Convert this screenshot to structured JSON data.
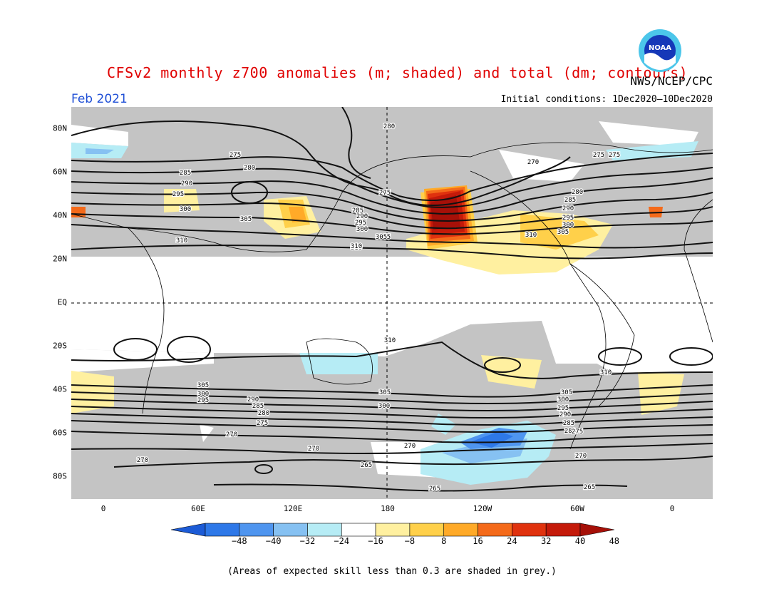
{
  "header": {
    "title": "CFSv2 monthly z700 anomalies (m; shaded) and total (dm; contours)",
    "agency": "NWS/NCEP/CPC",
    "logo_text": "NOAA",
    "month": "Feb 2021",
    "initial_conditions": "Initial conditions: 1Dec2020—10Dec2020"
  },
  "map": {
    "x_ticks": [
      "0",
      "60E",
      "120E",
      "180",
      "120W",
      "60W",
      "0"
    ],
    "y_ticks": [
      "80N",
      "60N",
      "40N",
      "20N",
      "EQ",
      "20S",
      "40S",
      "60S",
      "80S"
    ],
    "grey_meaning": "skill < 0.3",
    "contour_labels": [
      {
        "text": "275"
      },
      {
        "text": "280"
      },
      {
        "text": "275"
      },
      {
        "text": "280"
      },
      {
        "text": "285"
      },
      {
        "text": "290"
      },
      {
        "text": "295"
      },
      {
        "text": "300"
      },
      {
        "text": "305"
      },
      {
        "text": "305"
      },
      {
        "text": "310"
      },
      {
        "text": "285"
      },
      {
        "text": "290"
      },
      {
        "text": "295"
      },
      {
        "text": "300"
      },
      {
        "text": "305"
      },
      {
        "text": "310"
      },
      {
        "text": "270"
      },
      {
        "text": "275"
      },
      {
        "text": "280"
      },
      {
        "text": "285"
      },
      {
        "text": "290"
      },
      {
        "text": "295"
      },
      {
        "text": "300"
      },
      {
        "text": "305"
      },
      {
        "text": "310"
      },
      {
        "text": "275"
      },
      {
        "text": "310"
      },
      {
        "text": "310"
      },
      {
        "text": "310"
      },
      {
        "text": "305"
      },
      {
        "text": "300"
      },
      {
        "text": "295"
      },
      {
        "text": "290"
      },
      {
        "text": "285"
      },
      {
        "text": "280"
      },
      {
        "text": "275"
      },
      {
        "text": "305"
      },
      {
        "text": "300"
      },
      {
        "text": "305"
      },
      {
        "text": "300"
      },
      {
        "text": "295"
      },
      {
        "text": "290"
      },
      {
        "text": "285"
      },
      {
        "text": "280"
      },
      {
        "text": "275"
      },
      {
        "text": "270"
      },
      {
        "text": "270"
      },
      {
        "text": "270"
      },
      {
        "text": "270"
      },
      {
        "text": "270"
      },
      {
        "text": "265"
      },
      {
        "text": "265"
      },
      {
        "text": "265"
      }
    ]
  },
  "colorbar": {
    "labels": [
      "−48",
      "−40",
      "−32",
      "−24",
      "−16",
      "−8",
      "8",
      "16",
      "24",
      "32",
      "40",
      "48"
    ],
    "colors": [
      "#1c5bd6",
      "#2e78e8",
      "#4f95ef",
      "#86c1f2",
      "#b6ecf5",
      "#ffffff",
      "#fff0a0",
      "#ffd04a",
      "#ffaa28",
      "#f46a1a",
      "#e0320e",
      "#c41a0a",
      "#a61008"
    ],
    "grey": "#c4c4c4"
  },
  "footnote": "(Areas of expected skill less than 0.3 are shaded in grey.)"
}
